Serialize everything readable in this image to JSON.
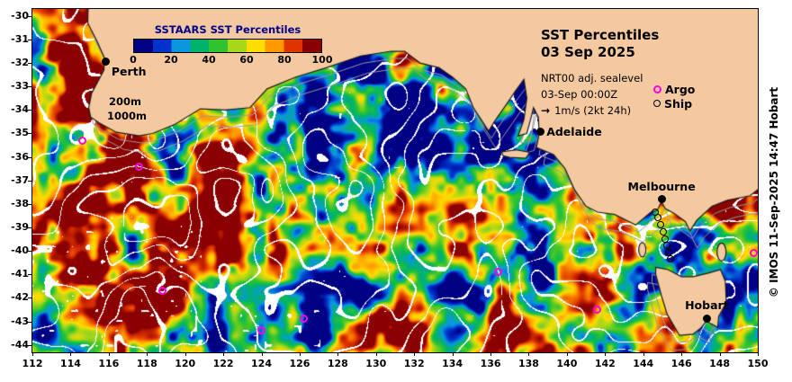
{
  "legend": {
    "title": "SSTAARS SST Percentiles",
    "ticks": [
      "0",
      "20",
      "40",
      "60",
      "80",
      "100"
    ],
    "stops": [
      "#000085",
      "#0033cc",
      "#0b97e0",
      "#00b36b",
      "#2fc42f",
      "#a8d61a",
      "#ffdd00",
      "#ff9900",
      "#e03400",
      "#8b0000"
    ]
  },
  "header": {
    "title": "SST Percentiles",
    "date": "03 Sep 2025",
    "line1": "NRT00 adj. sealevel",
    "line2": "03-Sep 00:00Z",
    "line3": "1m/s (2kt 24h)",
    "argo_label": "Argo",
    "ship_label": "Ship"
  },
  "depth_labels": {
    "l200": "200m",
    "l1000": "1000m"
  },
  "cities": [
    {
      "name": "Perth",
      "lon": 115.86,
      "lat": -31.95,
      "align": "se"
    },
    {
      "name": "Adelaide",
      "lon": 138.6,
      "lat": -34.93,
      "align": "e"
    },
    {
      "name": "Melbourne",
      "lon": 144.96,
      "lat": -37.81,
      "align": "n"
    },
    {
      "name": "Hobart",
      "lon": 147.33,
      "lat": -42.88,
      "align": "n"
    }
  ],
  "axes": {
    "x_ticks": [
      112,
      114,
      116,
      118,
      120,
      122,
      124,
      126,
      128,
      130,
      132,
      134,
      136,
      138,
      140,
      142,
      144,
      146,
      148,
      150
    ],
    "y_ticks": [
      -30,
      -31,
      -32,
      -33,
      -34,
      -35,
      -36,
      -37,
      -38,
      -39,
      -40,
      -41,
      -42,
      -43,
      -44
    ]
  },
  "markers": {
    "argo": [
      [
        114.6,
        -35.3
      ],
      [
        117.6,
        -36.4
      ],
      [
        118.8,
        -41.7
      ],
      [
        124.0,
        -43.4
      ],
      [
        126.2,
        -42.9
      ],
      [
        136.4,
        -40.9
      ],
      [
        141.6,
        -42.5
      ],
      [
        149.8,
        -40.1
      ]
    ],
    "ship": [
      [
        144.65,
        -38.35
      ],
      [
        144.8,
        -38.6
      ],
      [
        144.95,
        -38.9
      ],
      [
        145.05,
        -39.2
      ],
      [
        145.15,
        -39.5
      ],
      [
        145.25,
        -39.8
      ],
      [
        145.35,
        -40.1
      ],
      [
        145.45,
        -40.35
      ]
    ]
  },
  "credit": "© IMOS 11-Sep-2025 14:47 Hobart",
  "colors": {
    "land": "#f5c9a0",
    "coast": "#1a1a1a",
    "argo": "#ff00e0",
    "ship": "#000000",
    "legend_title": "#00008b",
    "contour": "#ffffff",
    "bathymetry": "#999999"
  },
  "chart_data": {
    "type": "heatmap",
    "title": "SST Percentiles 03 Sep 2025",
    "xlabel": "",
    "ylabel": "",
    "x_ticks": [
      112,
      114,
      116,
      118,
      120,
      122,
      124,
      126,
      128,
      130,
      132,
      134,
      136,
      138,
      140,
      142,
      144,
      146,
      148,
      150
    ],
    "y_ticks": [
      -30,
      -31,
      -32,
      -33,
      -34,
      -35,
      -36,
      -37,
      -38,
      -39,
      -40,
      -41,
      -42,
      -43,
      -44
    ],
    "xlim": [
      112,
      150
    ],
    "ylim": [
      -44.3,
      -29.7
    ],
    "colorbar": {
      "title": "SSTAARS SST Percentiles",
      "range": [
        0,
        100
      ],
      "ticks": [
        0,
        20,
        40,
        60,
        80,
        100
      ]
    },
    "overlays": [
      "adjusted sea level contours (white)",
      "200m and 1000m bathymetry contours (grey)",
      "Argo float positions (magenta circles)",
      "Ship positions (black circles)",
      "city markers: Perth, Adelaide, Melbourne, Hobart"
    ],
    "legend_position": "top-left",
    "grid": false
  }
}
